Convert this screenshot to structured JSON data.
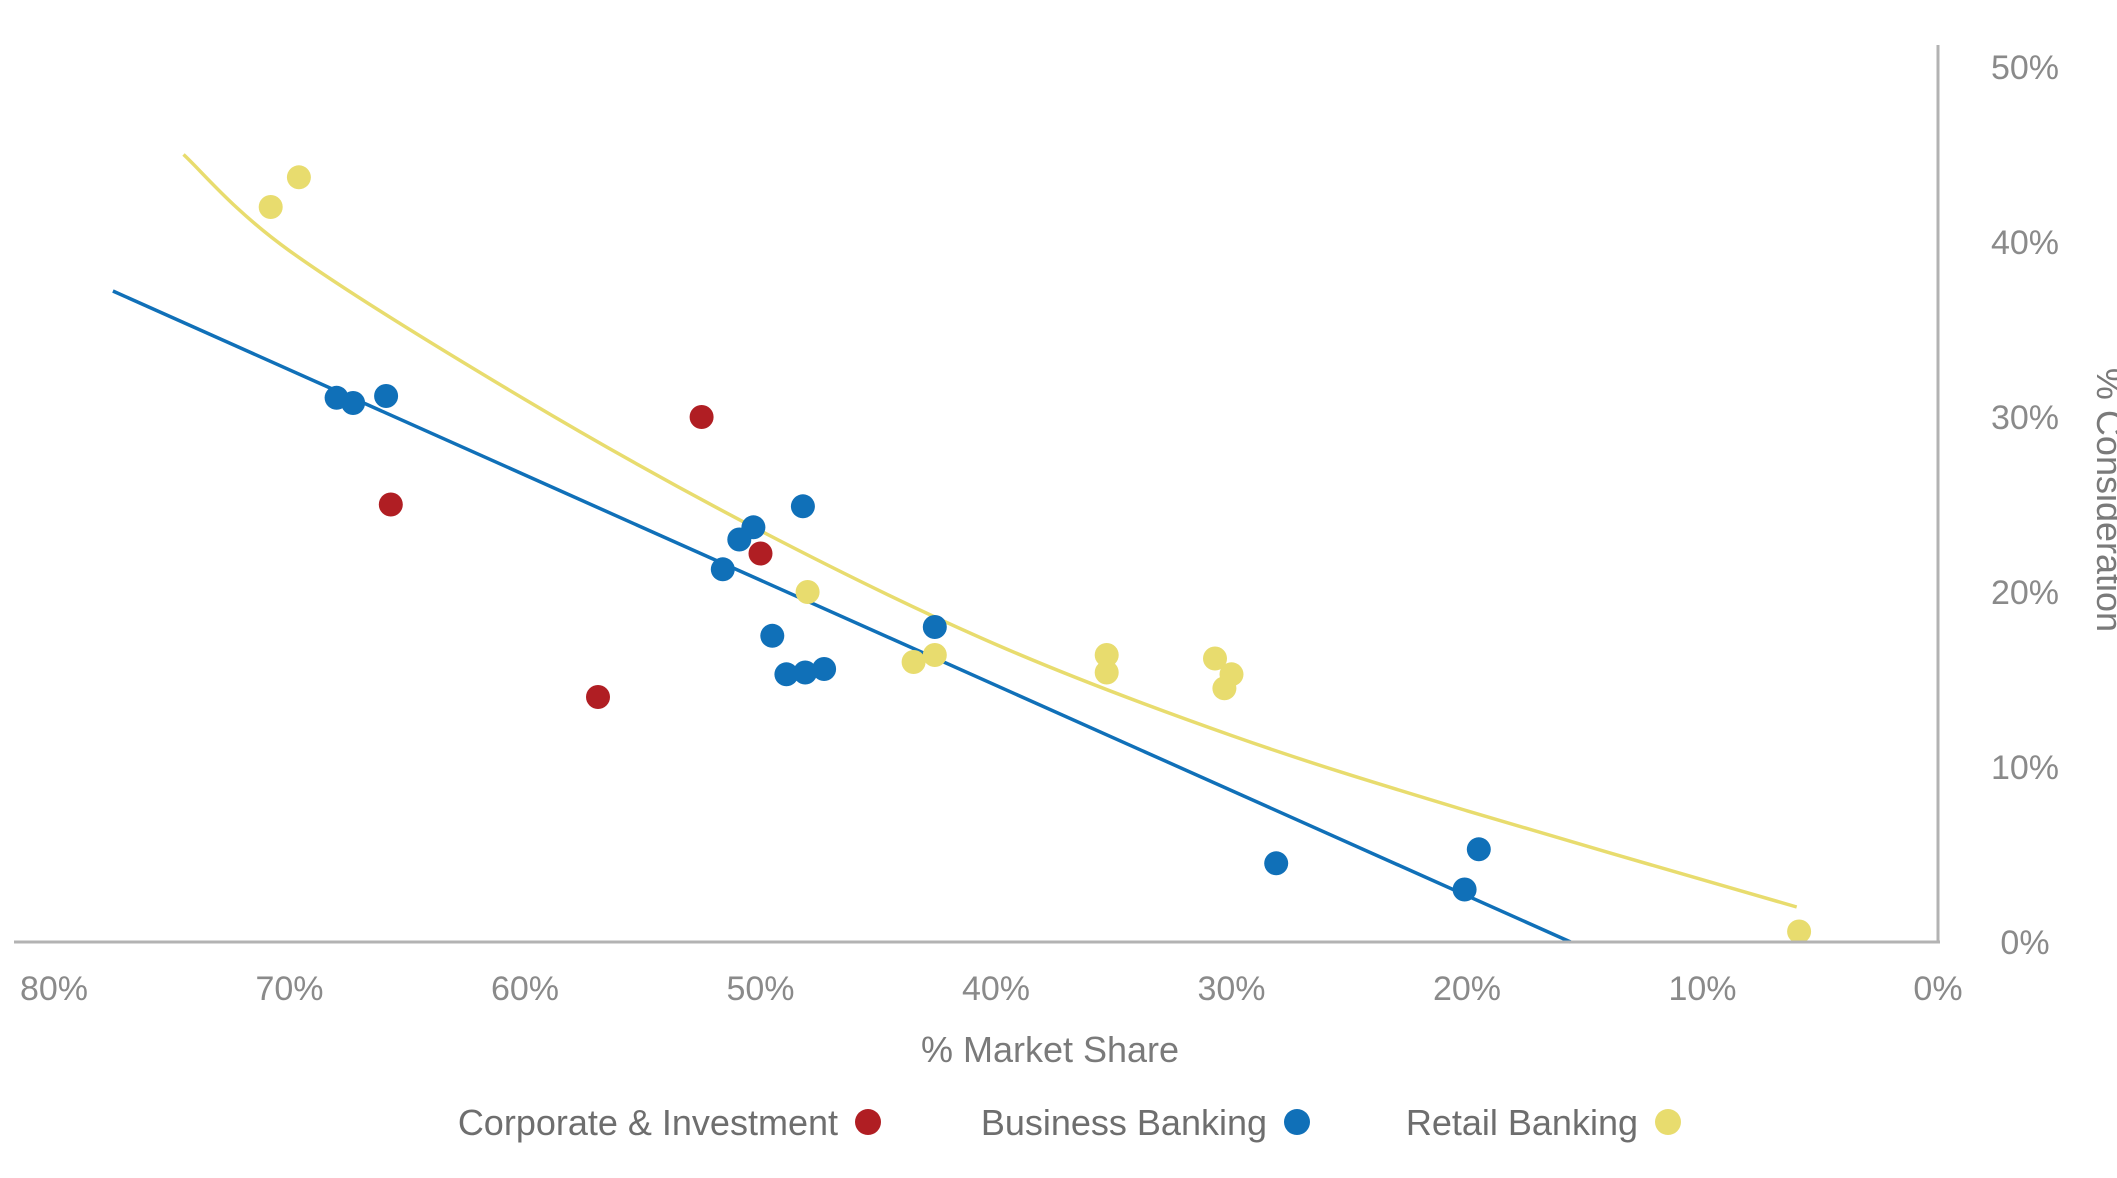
{
  "chart_data": {
    "type": "scatter",
    "title": "",
    "xlabel": "% Market Share",
    "ylabel": "% Consideration",
    "xlim": [
      0,
      82
    ],
    "ylim": [
      0,
      50
    ],
    "x_ticks": [
      0,
      10,
      20,
      30,
      40,
      50,
      60,
      70,
      80
    ],
    "y_ticks": [
      0,
      10,
      20,
      30,
      40,
      50
    ],
    "x_tick_labels": [
      "0%",
      "10%",
      "20%",
      "30%",
      "40%",
      "50%",
      "60%",
      "70%",
      "80%"
    ],
    "y_tick_labels": [
      "0%",
      "10%",
      "20%",
      "30%",
      "40%",
      "50%"
    ],
    "orientation": "mirrored horizontally (x increases to the left, y axis on right)",
    "grid": false,
    "legend_position": "bottom-center",
    "series": [
      {
        "name": "Retail Banking",
        "color": "#e8dc6e",
        "points": [
          {
            "x": 5.9,
            "y": 0.6
          },
          {
            "x": 30.3,
            "y": 14.5
          },
          {
            "x": 30.7,
            "y": 16.2
          },
          {
            "x": 30.0,
            "y": 15.3
          },
          {
            "x": 35.3,
            "y": 16.4
          },
          {
            "x": 35.3,
            "y": 15.4
          },
          {
            "x": 42.6,
            "y": 16.4
          },
          {
            "x": 43.5,
            "y": 16.0
          },
          {
            "x": 48.0,
            "y": 20.0
          },
          {
            "x": 69.6,
            "y": 43.7
          },
          {
            "x": 70.8,
            "y": 42.0
          }
        ],
        "trend": {
          "type": "curve",
          "x": [
            6.0,
            20,
            30,
            40,
            50,
            60,
            70,
            74.5
          ],
          "y": [
            2.0,
            7.5,
            11.8,
            17.0,
            23.5,
            31.0,
            39.5,
            45.0
          ]
        }
      },
      {
        "name": "Business Banking",
        "color": "#1070b8",
        "points": [
          {
            "x": 19.5,
            "y": 5.3
          },
          {
            "x": 20.1,
            "y": 3.0
          },
          {
            "x": 28.1,
            "y": 4.5
          },
          {
            "x": 42.6,
            "y": 18.0
          },
          {
            "x": 47.3,
            "y": 15.6
          },
          {
            "x": 48.1,
            "y": 15.4
          },
          {
            "x": 48.9,
            "y": 15.3
          },
          {
            "x": 49.5,
            "y": 17.5
          },
          {
            "x": 48.2,
            "y": 24.9
          },
          {
            "x": 50.3,
            "y": 23.7
          },
          {
            "x": 50.9,
            "y": 23.0
          },
          {
            "x": 51.6,
            "y": 21.3
          },
          {
            "x": 65.9,
            "y": 31.2
          },
          {
            "x": 67.3,
            "y": 30.8
          },
          {
            "x": 68.0,
            "y": 31.1
          }
        ],
        "trend": {
          "type": "line",
          "x": [
            15.6,
            77.5
          ],
          "y": [
            0.0,
            37.2
          ]
        }
      },
      {
        "name": "Corporate & Investment",
        "color": "#b01e23",
        "points": [
          {
            "x": 52.5,
            "y": 30.0
          },
          {
            "x": 50.0,
            "y": 22.2
          },
          {
            "x": 56.9,
            "y": 14.0
          },
          {
            "x": 65.7,
            "y": 25.0
          }
        ],
        "trend": null
      }
    ]
  }
}
